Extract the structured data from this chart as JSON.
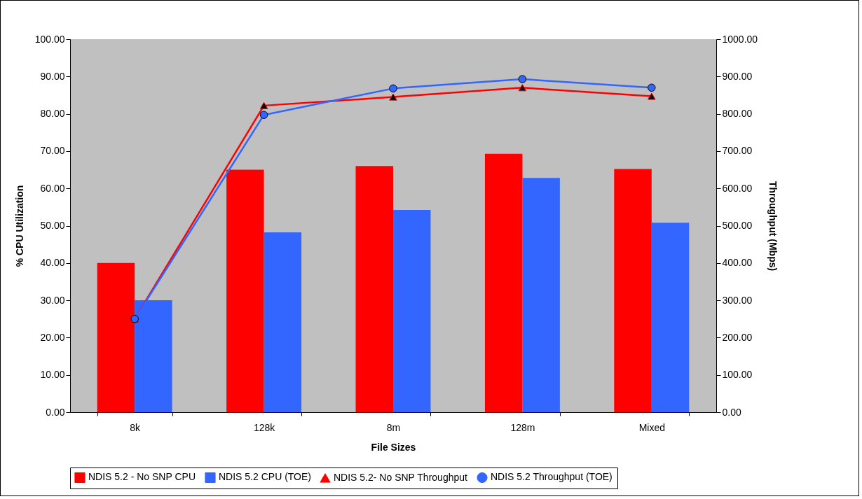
{
  "chart_data": {
    "type": "bar",
    "xlabel": "File Sizes",
    "ylabel": "% CPU Utilization",
    "y2label": "Throughput (Mbps)",
    "categories": [
      "8k",
      "128k",
      "8m",
      "128m",
      "Mixed"
    ],
    "series": [
      {
        "name": "NDIS 5.2 - No SNP CPU",
        "color": "#ff0000",
        "values": [
          40.0,
          65.0,
          66.0,
          69.3,
          65.2
        ]
      },
      {
        "name": "NDIS 5.2 CPU (TOE)",
        "color": "#3366ff",
        "values": [
          30.0,
          48.2,
          54.2,
          62.8,
          50.8
        ]
      },
      {
        "name": "NDIS 5.2- No SNP Throughput",
        "type": "line",
        "axis": "y2",
        "marker": "triangle",
        "color": "#ff0000",
        "values": [
          250,
          822,
          845,
          870,
          847
        ]
      },
      {
        "name": "NDIS 5.2 Throughput (TOE)",
        "type": "line",
        "axis": "y2",
        "marker": "circle",
        "color": "#3366ff",
        "values": [
          250,
          797,
          868,
          893,
          870
        ]
      }
    ],
    "ylim": [
      0,
      100
    ],
    "yticks": [
      {
        "value": 0,
        "label": "0.00"
      },
      {
        "value": 10,
        "label": "10.00"
      },
      {
        "value": 20,
        "label": "20.00"
      },
      {
        "value": 30,
        "label": "30.00"
      },
      {
        "value": 40,
        "label": "40.00"
      },
      {
        "value": 50,
        "label": "50.00"
      },
      {
        "value": 60,
        "label": "60.00"
      },
      {
        "value": 70,
        "label": "70.00"
      },
      {
        "value": 80,
        "label": "80.00"
      },
      {
        "value": 90,
        "label": "90.00"
      },
      {
        "value": 100,
        "label": "100.00"
      }
    ],
    "y2lim": [
      0,
      1000
    ],
    "y2ticks": [
      {
        "value": 0,
        "label": "0.00"
      },
      {
        "value": 100,
        "label": "100.00"
      },
      {
        "value": 200,
        "label": "200.00"
      },
      {
        "value": 300,
        "label": "300.00"
      },
      {
        "value": 400,
        "label": "400.00"
      },
      {
        "value": 500,
        "label": "500.00"
      },
      {
        "value": 600,
        "label": "600.00"
      },
      {
        "value": 700,
        "label": "700.00"
      },
      {
        "value": 800,
        "label": "800.00"
      },
      {
        "value": 900,
        "label": "900.00"
      },
      {
        "value": 1000,
        "label": "1000.00"
      }
    ],
    "grid": false,
    "legend": "bottom"
  }
}
